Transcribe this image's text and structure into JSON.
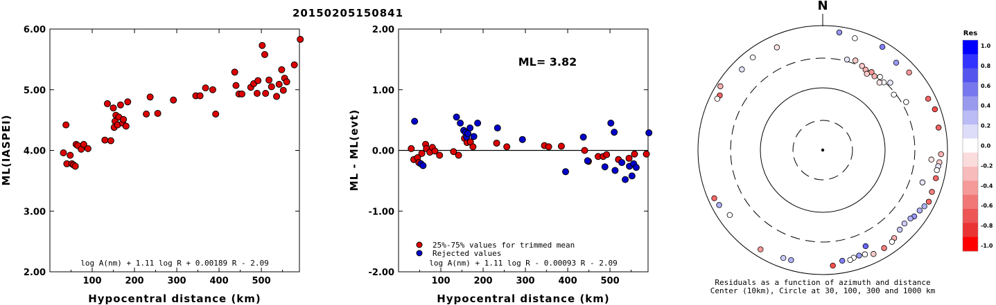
{
  "chart_data": [
    {
      "type": "scatter",
      "title": "20150205150841",
      "xlabel": "Hypocentral distance (km)",
      "ylabel": "ML(IASPEI)",
      "xlim": [
        0,
        590
      ],
      "ylim": [
        2.0,
        6.0
      ],
      "x_ticks": [
        "100",
        "200",
        "300",
        "400",
        "500"
      ],
      "y_ticks": [
        "2.00",
        "3.00",
        "4.00",
        "5.00",
        "6.00"
      ],
      "formula": "log A(nm) + 1.11 log R + 0.00189 R - 2.09",
      "series": [
        {
          "color": "#dd0000",
          "points": [
            [
              32,
              3.96
            ],
            [
              38,
              4.42
            ],
            [
              40,
              3.78
            ],
            [
              48,
              3.92
            ],
            [
              52,
              3.78
            ],
            [
              56,
              3.76
            ],
            [
              60,
              3.74
            ],
            [
              62,
              4.1
            ],
            [
              66,
              4.08
            ],
            [
              74,
              4.02
            ],
            [
              80,
              4.1
            ],
            [
              90,
              4.03
            ],
            [
              130,
              4.17
            ],
            [
              136,
              4.77
            ],
            [
              144,
              4.16
            ],
            [
              150,
              4.7
            ],
            [
              152,
              4.38
            ],
            [
              154,
              4.48
            ],
            [
              156,
              4.58
            ],
            [
              160,
              4.42
            ],
            [
              163,
              4.55
            ],
            [
              167,
              4.75
            ],
            [
              172,
              4.45
            ],
            [
              174,
              4.51
            ],
            [
              180,
              4.4
            ],
            [
              184,
              4.8
            ],
            [
              228,
              4.6
            ],
            [
              237,
              4.88
            ],
            [
              255,
              4.61
            ],
            [
              292,
              4.83
            ],
            [
              345,
              4.9
            ],
            [
              355,
              4.9
            ],
            [
              368,
              5.03
            ],
            [
              385,
              5.0
            ],
            [
              392,
              4.6
            ],
            [
              437,
              5.29
            ],
            [
              440,
              5.07
            ],
            [
              447,
              4.93
            ],
            [
              454,
              4.93
            ],
            [
              475,
              5.04
            ],
            [
              482,
              5.1
            ],
            [
              490,
              4.94
            ],
            [
              492,
              5.15
            ],
            [
              502,
              5.73
            ],
            [
              508,
              5.58
            ],
            [
              510,
              4.94
            ],
            [
              518,
              5.16
            ],
            [
              524,
              5.05
            ],
            [
              536,
              4.89
            ],
            [
              542,
              5.09
            ],
            [
              548,
              5.33
            ],
            [
              552,
              4.99
            ],
            [
              555,
              5.19
            ],
            [
              560,
              5.13
            ],
            [
              578,
              5.41
            ],
            [
              592,
              5.83
            ]
          ]
        }
      ]
    },
    {
      "type": "scatter",
      "xlabel": "Hypocentral distance (km)",
      "ylabel": "ML - ML(evt)",
      "xlim": [
        0,
        590
      ],
      "ylim": [
        -2.0,
        2.0
      ],
      "x_ticks": [
        "100",
        "200",
        "300",
        "400",
        "500"
      ],
      "y_ticks": [
        "-2.00",
        "-1.00",
        "0.00",
        "1.00",
        "2.00"
      ],
      "reference_line": 0.0,
      "annotation": "ML= 3.82",
      "legend": [
        "25%-75% values for trimmed mean",
        "Rejected values"
      ],
      "formula": "log A(nm) + 1.11 log R - 0.00093 R - 2.09",
      "series": [
        {
          "name": "25%-75% values for trimmed mean",
          "color": "#dd0000",
          "points": [
            [
              30,
              0.03
            ],
            [
              36,
              -0.15
            ],
            [
              45,
              -0.12
            ],
            [
              48,
              -0.2
            ],
            [
              55,
              -0.05
            ],
            [
              64,
              0.1
            ],
            [
              66,
              0.03
            ],
            [
              74,
              -0.03
            ],
            [
              80,
              0.05
            ],
            [
              86,
              -0.01
            ],
            [
              97,
              -0.08
            ],
            [
              130,
              -0.02
            ],
            [
              142,
              -0.08
            ],
            [
              156,
              0.2
            ],
            [
              162,
              0.13
            ],
            [
              170,
              0.14
            ],
            [
              176,
              0.06
            ],
            [
              232,
              0.12
            ],
            [
              256,
              0.06
            ],
            [
              345,
              0.08
            ],
            [
              355,
              0.06
            ],
            [
              385,
              0.07
            ],
            [
              440,
              0.0
            ],
            [
              449,
              -0.18
            ],
            [
              472,
              -0.1
            ],
            [
              484,
              -0.1
            ],
            [
              492,
              -0.07
            ],
            [
              520,
              -0.15
            ],
            [
              545,
              -0.13
            ],
            [
              558,
              -0.06
            ],
            [
              586,
              -0.06
            ]
          ]
        },
        {
          "name": "Rejected values",
          "color": "#0000cc",
          "points": [
            [
              38,
              0.48
            ],
            [
              53,
              -0.22
            ],
            [
              58,
              -0.25
            ],
            [
              137,
              0.55
            ],
            [
              146,
              0.45
            ],
            [
              154,
              0.33
            ],
            [
              158,
              0.3
            ],
            [
              161,
              0.22
            ],
            [
              164,
              0.28
            ],
            [
              169,
              0.37
            ],
            [
              178,
              0.23
            ],
            [
              187,
              0.45
            ],
            [
              234,
              0.37
            ],
            [
              293,
              0.18
            ],
            [
              395,
              -0.35
            ],
            [
              437,
              0.22
            ],
            [
              447,
              -0.17
            ],
            [
              488,
              -0.27
            ],
            [
              502,
              0.45
            ],
            [
              510,
              0.3
            ],
            [
              512,
              -0.33
            ],
            [
              528,
              -0.2
            ],
            [
              536,
              -0.48
            ],
            [
              546,
              -0.26
            ],
            [
              552,
              -0.42
            ],
            [
              556,
              -0.22
            ],
            [
              562,
              -0.28
            ],
            [
              592,
              0.29
            ]
          ]
        }
      ]
    },
    {
      "type": "scatter",
      "subtype": "polar",
      "north_label": "N",
      "caption_line1": "Residuals as a function of azimuth and distance",
      "caption_line2": "Center (10km), Circle at 30, 100, 300 and 1000 km",
      "colorbar": {
        "title": "Res",
        "ticks": [
          "1.0",
          "0.8",
          "0.6",
          "0.4",
          "0.2",
          "0.0",
          "-0.2",
          "-0.4",
          "-0.6",
          "-0.8",
          "-1.0"
        ],
        "colors": [
          "#0000ff",
          "#3333ff",
          "#5555ee",
          "#7777ee",
          "#9999ee",
          "#bbbbf5",
          "#ddddfa",
          "#ffffff",
          "#fbdcdc",
          "#f8bbbb",
          "#f59999",
          "#f17777",
          "#ee5555",
          "#ea3333",
          "#ff0000"
        ]
      },
      "points": [
        {
          "az": -45,
          "dist": 680,
          "res": 0.1
        },
        {
          "az": -62,
          "dist": 740,
          "res": -0.6
        },
        {
          "az": -24,
          "dist": 640,
          "res": -0.1
        },
        {
          "az": 8,
          "dist": 810,
          "res": 0.4
        },
        {
          "az": 30,
          "dist": 820,
          "res": 0.5
        },
        {
          "az": 16,
          "dist": 740,
          "res": 0.0
        },
        {
          "az": 40,
          "dist": 680,
          "res": 0.4
        },
        {
          "az": 48,
          "dist": 730,
          "res": -0.4
        },
        {
          "az": 64,
          "dist": 760,
          "res": -0.6
        },
        {
          "az": 70,
          "dist": 820,
          "res": -0.7
        },
        {
          "az": 79,
          "dist": 780,
          "res": -0.6
        },
        {
          "az": 92,
          "dist": 790,
          "res": -0.3
        },
        {
          "az": 96,
          "dist": 760,
          "res": -0.2
        },
        {
          "az": 98,
          "dist": 740,
          "res": 0.1
        },
        {
          "az": 100,
          "dist": 720,
          "res": 0.0
        },
        {
          "az": 104,
          "dist": 740,
          "res": -0.6
        },
        {
          "az": 111,
          "dist": 750,
          "res": -0.5
        },
        {
          "az": 116,
          "dist": 780,
          "res": -0.6
        },
        {
          "az": 119,
          "dist": 730,
          "res": 0.3
        },
        {
          "az": 122,
          "dist": 680,
          "res": 0.3
        },
        {
          "az": 126,
          "dist": 650,
          "res": 0.4
        },
        {
          "az": 128,
          "dist": 610,
          "res": 0.3
        },
        {
          "az": 132,
          "dist": 580,
          "res": 0.2
        },
        {
          "az": 136,
          "dist": 600,
          "res": 0.2
        },
        {
          "az": 141,
          "dist": 660,
          "res": -0.3
        },
        {
          "az": 143,
          "dist": 700,
          "res": 0.0
        },
        {
          "az": 148,
          "dist": 720,
          "res": -0.5
        },
        {
          "az": 154,
          "dist": 720,
          "res": -0.2
        },
        {
          "az": 158,
          "dist": 640,
          "res": 0.0
        },
        {
          "az": 161,
          "dist": 620,
          "res": 0.4
        },
        {
          "az": 164,
          "dist": 630,
          "res": 0.0
        },
        {
          "az": 166,
          "dist": 660,
          "res": 0.0
        },
        {
          "az": 170,
          "dist": 640,
          "res": 0.5
        },
        {
          "az": 175,
          "dist": 730,
          "res": -0.7
        },
        {
          "az": 156,
          "dist": 490,
          "res": 0.6
        },
        {
          "az": 108,
          "dist": 480,
          "res": 0.1
        },
        {
          "az": 196,
          "dist": 690,
          "res": 0.3
        },
        {
          "az": 200,
          "dist": 700,
          "res": 0.2
        },
        {
          "az": 212,
          "dist": 760,
          "res": -0.4
        },
        {
          "az": 235,
          "dist": 660,
          "res": 0.0
        },
        {
          "az": 242,
          "dist": 760,
          "res": 0.3
        },
        {
          "az": 246,
          "dist": 800,
          "res": -0.6
        },
        {
          "az": 296,
          "dist": 760,
          "res": 0.0
        },
        {
          "az": 323,
          "dist": 730,
          "res": 0.0
        },
        {
          "az": 302,
          "dist": 860,
          "res": -0.3
        },
        {
          "az": 15,
          "dist": 320,
          "res": 0.1
        },
        {
          "az": 20,
          "dist": 340,
          "res": -0.2
        },
        {
          "az": 25,
          "dist": 310,
          "res": -0.2
        },
        {
          "az": 28,
          "dist": 290,
          "res": -0.3
        },
        {
          "az": 32,
          "dist": 300,
          "res": -0.4
        },
        {
          "az": 35,
          "dist": 280,
          "res": -0.3
        },
        {
          "az": 38,
          "dist": 310,
          "res": 0.0
        },
        {
          "az": 30,
          "dist": 260,
          "res": -0.2
        },
        {
          "az": 42,
          "dist": 290,
          "res": 0.0
        },
        {
          "az": 40,
          "dist": 260,
          "res": -0.1
        },
        {
          "az": 45,
          "dist": 340,
          "res": 0.1
        },
        {
          "az": 52,
          "dist": 280,
          "res": 0.0
        },
        {
          "az": 60,
          "dist": 350,
          "res": 0.0
        },
        {
          "az": 95,
          "dist": 560,
          "res": -0.1
        }
      ]
    }
  ]
}
